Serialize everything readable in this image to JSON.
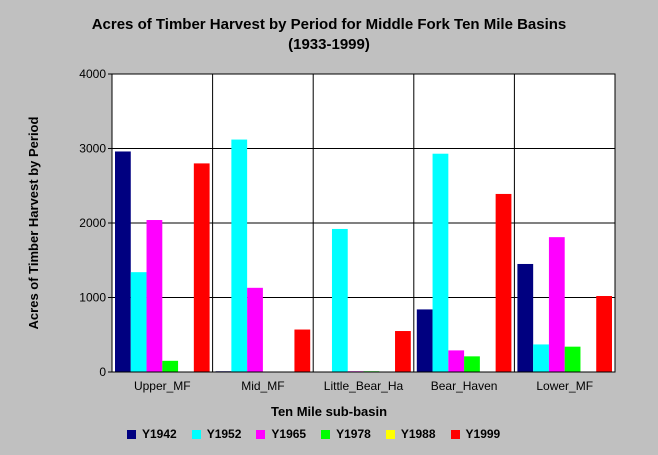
{
  "chart_data": {
    "type": "bar",
    "title": "Acres of Timber Harvest by Period for Middle Fork Ten Mile Basins",
    "subtitle": "(1933-1999)",
    "xlabel": "Ten Mile sub-basin",
    "ylabel": "Acres of Timber Harvest by Period",
    "ylim": [
      0,
      4000
    ],
    "yticks": [
      0,
      1000,
      2000,
      3000,
      4000
    ],
    "yticklabels": [
      "0",
      "1000",
      "2000",
      "3000",
      "4000"
    ],
    "grid": true,
    "legend_position": "bottom",
    "categories": [
      "Upper_MF",
      "Mid_MF",
      "Little_Bear_Ha",
      "Bear_Haven",
      "Lower_MF"
    ],
    "series": [
      {
        "name": "Y1942",
        "color": "#000080",
        "values": [
          2960,
          10,
          0,
          840,
          1450
        ]
      },
      {
        "name": "Y1952",
        "color": "#00ffff",
        "values": [
          1340,
          3120,
          1920,
          2930,
          370
        ]
      },
      {
        "name": "Y1965",
        "color": "#ff00ff",
        "values": [
          2040,
          1130,
          10,
          290,
          1810
        ]
      },
      {
        "name": "Y1978",
        "color": "#00ff00",
        "values": [
          150,
          0,
          10,
          210,
          340
        ]
      },
      {
        "name": "Y1988",
        "color": "#ffff00",
        "values": [
          0,
          0,
          0,
          0,
          0
        ]
      },
      {
        "name": "Y1999",
        "color": "#ff0000",
        "values": [
          2800,
          570,
          550,
          2390,
          1020
        ]
      }
    ]
  }
}
